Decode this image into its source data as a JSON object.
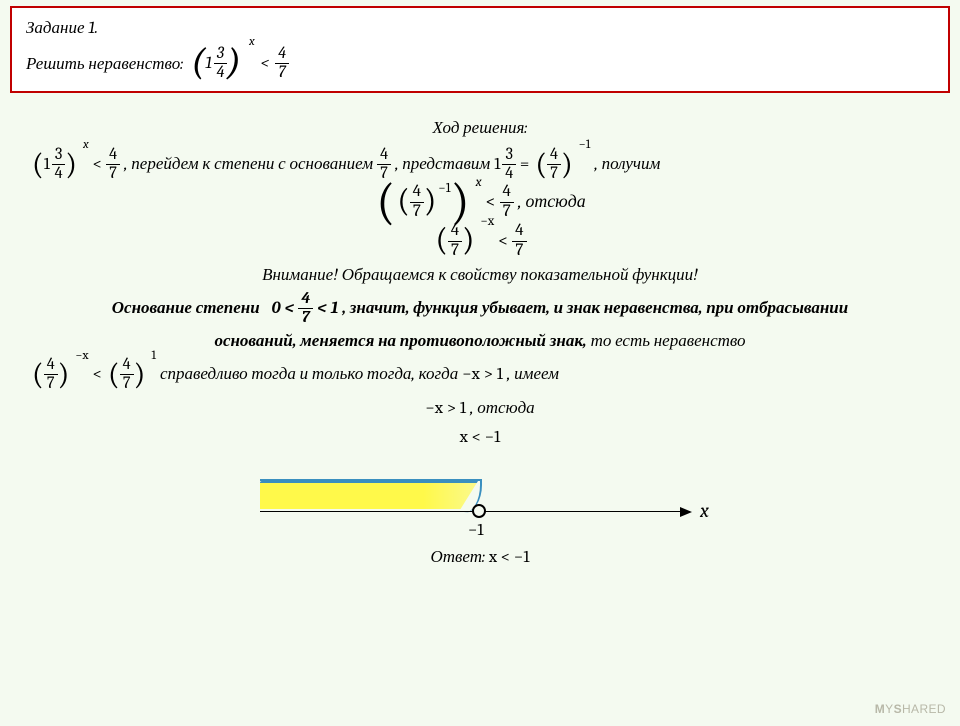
{
  "task": {
    "title": "Задание 1.",
    "prompt": "Решить неравенство:",
    "base_whole": "1",
    "base_num": "3",
    "base_den": "4",
    "exp": "x",
    "lt": "<",
    "rhs_num": "4",
    "rhs_den": "7"
  },
  "solution": {
    "heading": "Ход решения:",
    "line1_mid": ", перейдем к степени с основанием",
    "line1_mid2": ", представим",
    "line1_eq": "=",
    "neg1": "−1",
    "line1_end": ", получим",
    "line2_end": ", отсюда",
    "neg_x": "−x",
    "attention": "Внимание! Обращаемся к свойству показательной функции!",
    "base_text1": "Основание степени",
    "zero": "0",
    "one": "1",
    "lt_b": "<",
    "base_text2": ", значит, функция убывает, и знак неравенства, при отбрасывании",
    "base_text3": "оснований, меняется на противоположный знак,",
    "base_text4": "то есть  неравенство",
    "one_exp": "1",
    "valid_text": " справедливо тогда и только тогда, когда ",
    "cond": "−x > 1",
    "have": ", имеем",
    "res1": "−x > 1",
    "res1_after": ", отсюда",
    "res2": "x < −1"
  },
  "diagram": {
    "highlight_color": "#fff94a",
    "curve_color": "#3a8fbf",
    "point_label": "−1",
    "axis_label": "x"
  },
  "answer": {
    "label": "Ответ:",
    "value": "x < −1"
  },
  "watermark": "MYSHARED"
}
